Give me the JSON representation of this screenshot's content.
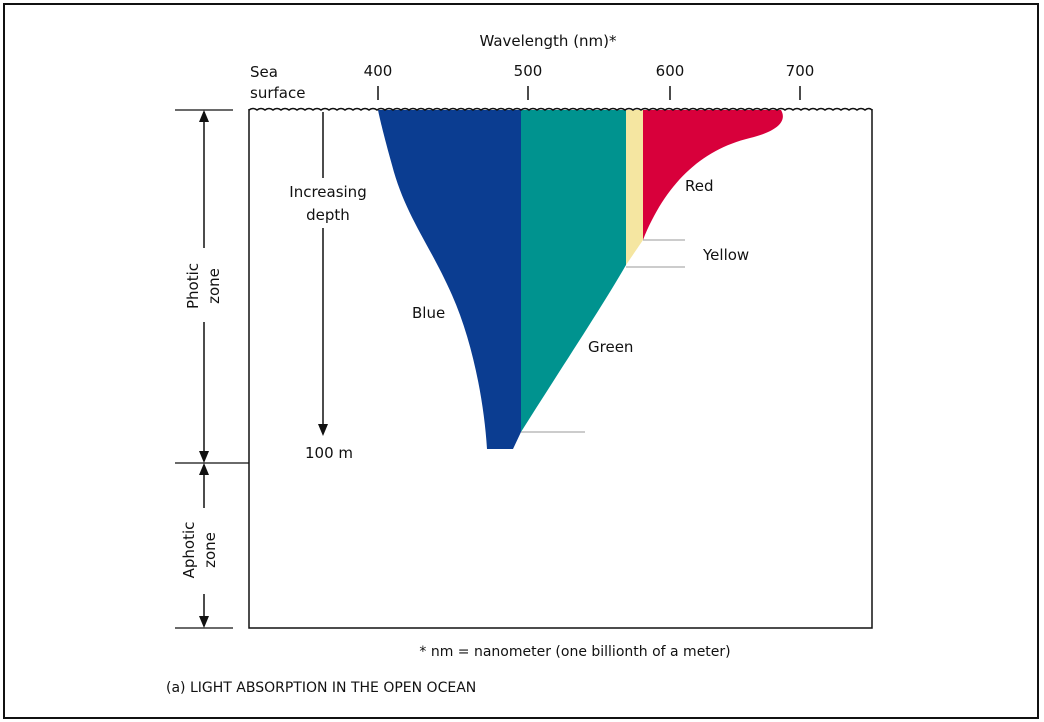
{
  "axis": {
    "title": "Wavelength (nm)*",
    "ticks": [
      "400",
      "500",
      "600",
      "700"
    ]
  },
  "surface": {
    "line1": "Sea",
    "line2": "surface"
  },
  "depth": {
    "line1": "Increasing",
    "line2": "depth",
    "end_label": "100 m"
  },
  "zones": {
    "photic_line1": "Photic",
    "photic_line2": "zone",
    "aphotic_line1": "Aphotic",
    "aphotic_line2": "zone"
  },
  "colors_labels": {
    "blue": "Blue",
    "green": "Green",
    "yellow": "Yellow",
    "red": "Red"
  },
  "colors": {
    "blue": "#0b3d91",
    "green": "#00938f",
    "yellow": "#f5e6a1",
    "red": "#d8003b"
  },
  "footnote": "* nm = nanometer (one billionth of a meter)",
  "caption": "(a) LIGHT ABSORPTION IN THE OPEN OCEAN"
}
